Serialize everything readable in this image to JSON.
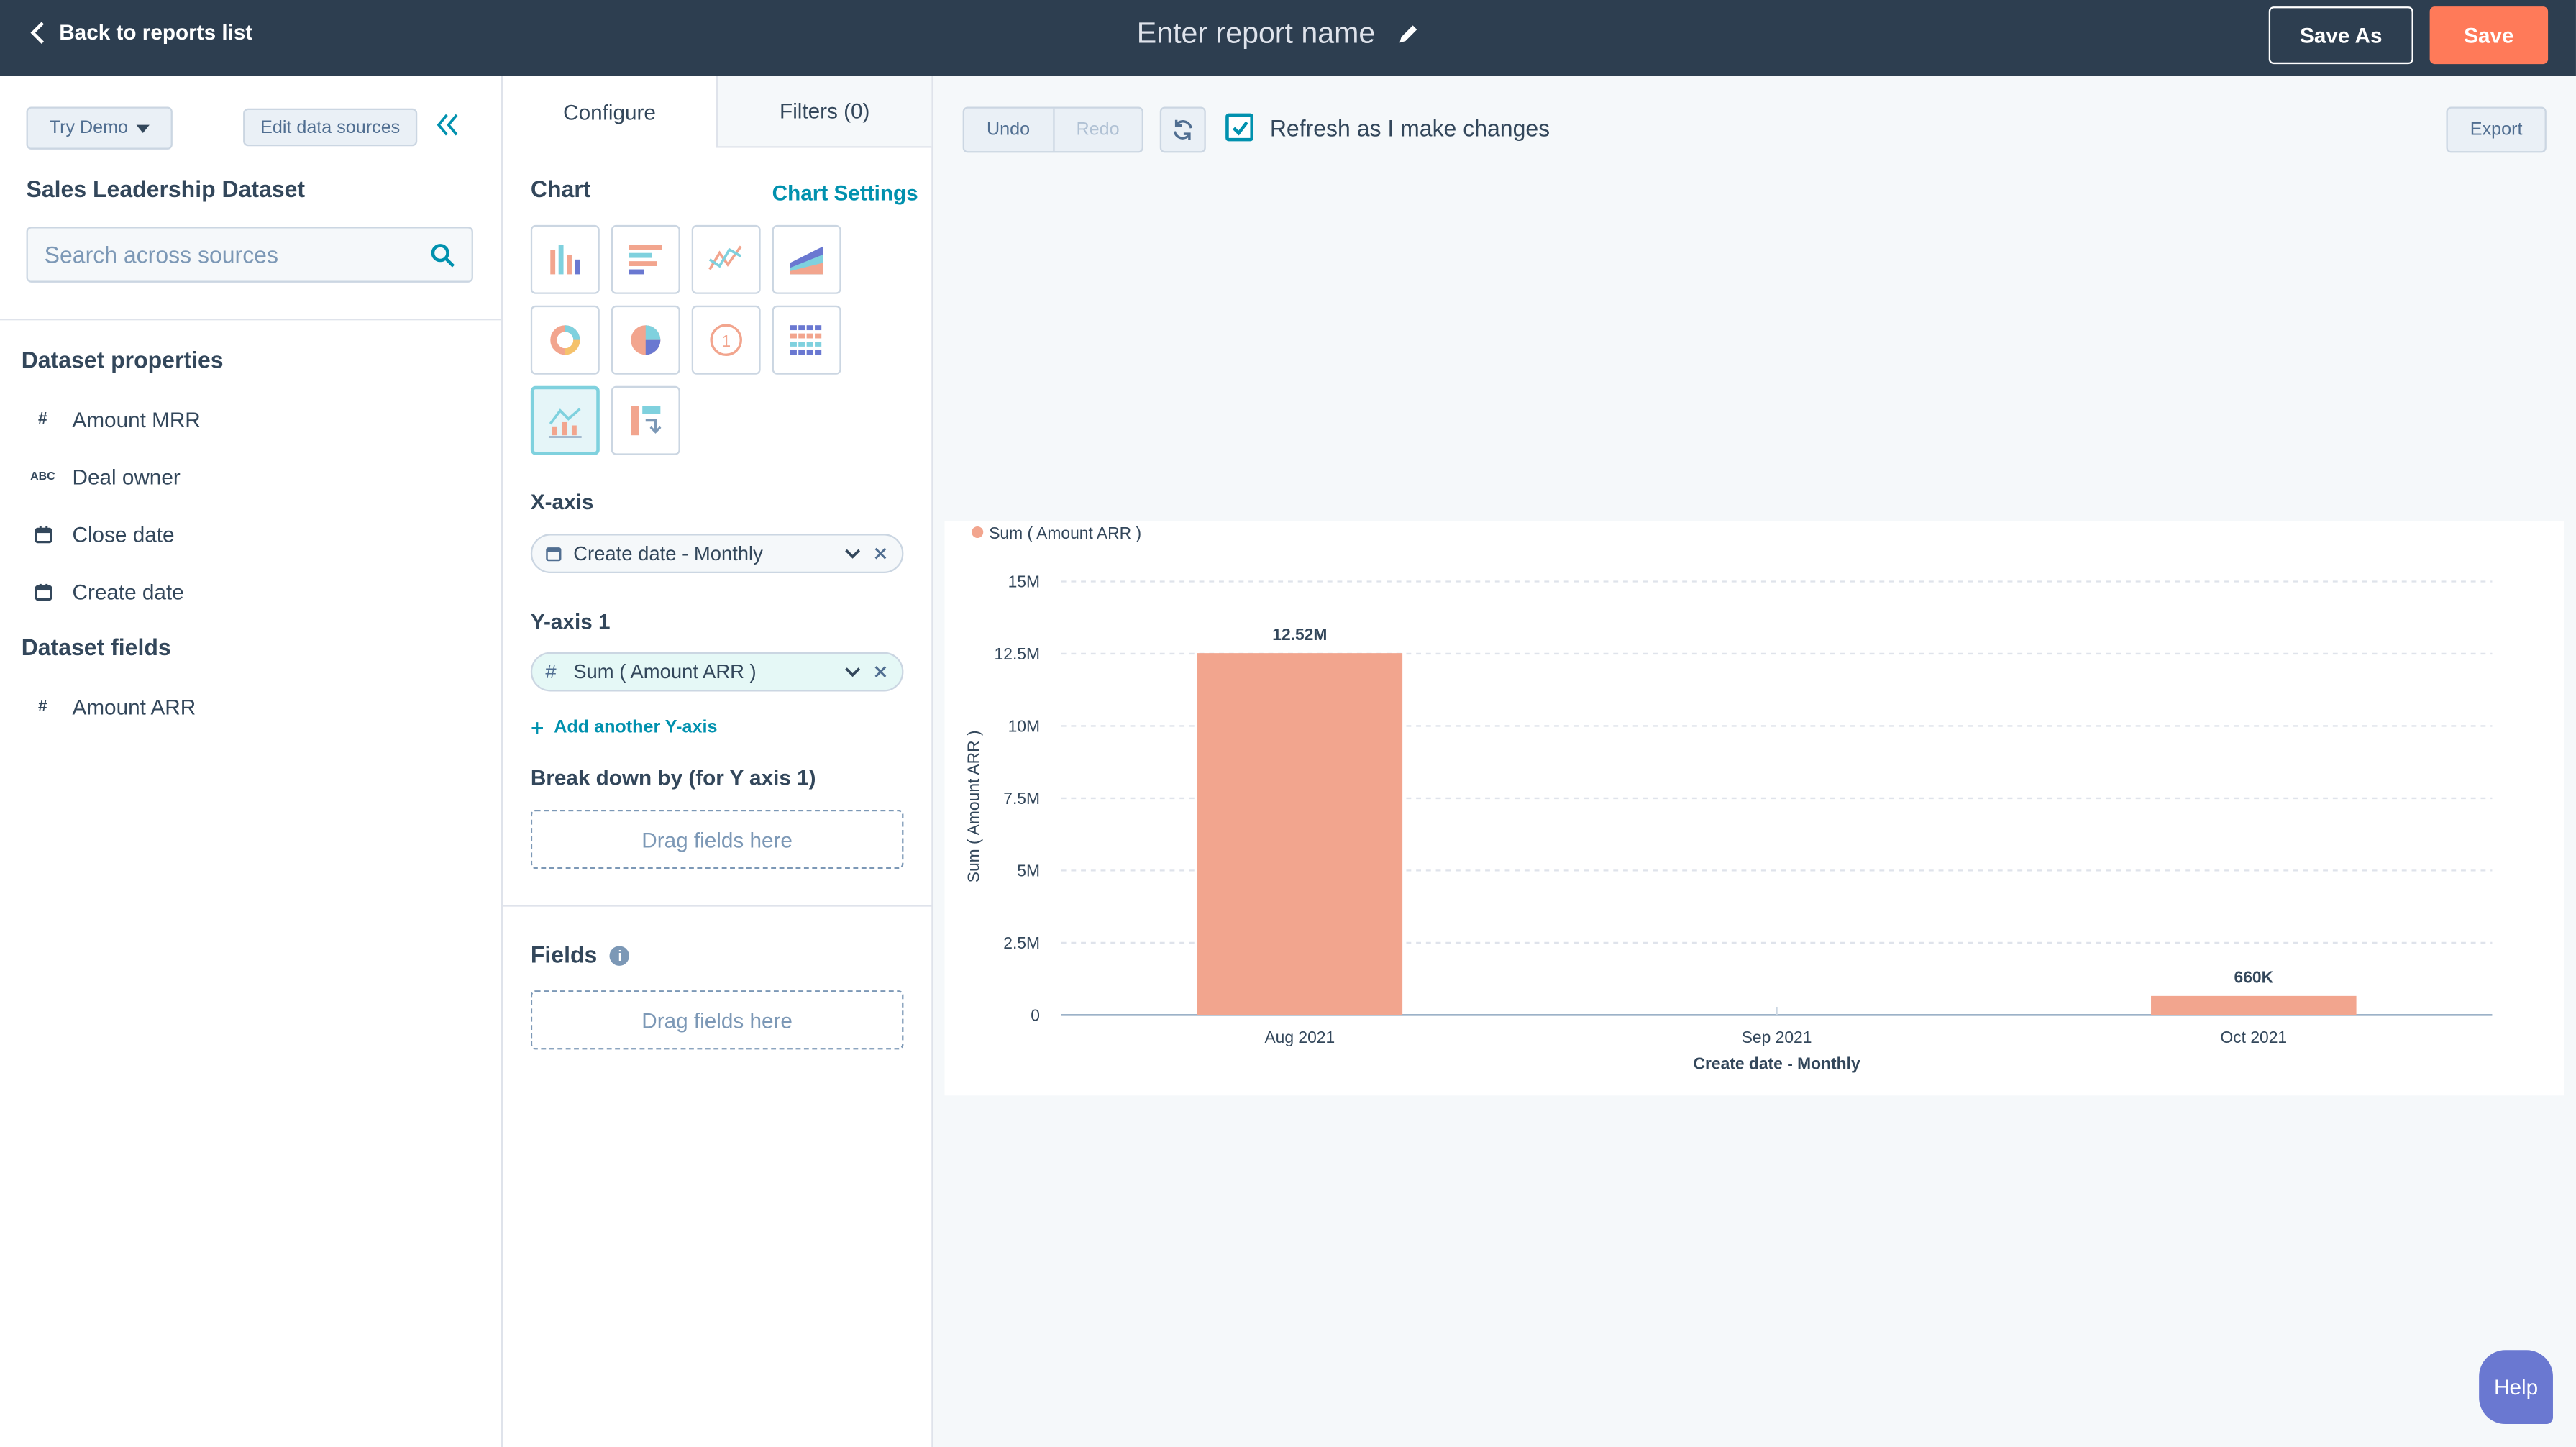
{
  "topbar": {
    "back_label": "Back to reports list",
    "report_name_placeholder": "Enter report name",
    "save_as_label": "Save As",
    "save_label": "Save",
    "save_color": "#ff7a59"
  },
  "left_panel": {
    "try_demo_label": "Try Demo",
    "edit_sources_label": "Edit data sources",
    "dataset_title": "Sales Leadership Dataset",
    "search_placeholder": "Search across sources",
    "properties_title": "Dataset properties",
    "properties": [
      {
        "label": "Amount MRR",
        "icon": "number-icon"
      },
      {
        "label": "Deal owner",
        "icon": "text-icon",
        "icon_text": "ABC"
      },
      {
        "label": "Close date",
        "icon": "calendar-icon"
      },
      {
        "label": "Create date",
        "icon": "calendar-icon"
      }
    ],
    "fields_title": "Dataset fields",
    "fields": [
      {
        "label": "Amount ARR",
        "icon": "number-icon"
      }
    ]
  },
  "middle_panel": {
    "tabs": [
      {
        "label": "Configure",
        "active": true
      },
      {
        "label": "Filters (0)",
        "active": false
      }
    ],
    "chart_label": "Chart",
    "chart_settings_label": "Chart Settings",
    "chart_types": [
      "vertical-bar",
      "horizontal-bar",
      "line",
      "area",
      "donut",
      "pie",
      "kpi",
      "table",
      "combo",
      "pivot-table"
    ],
    "selected_chart_type": "combo",
    "x_axis_label": "X-axis",
    "x_axis_value": "Create date - Monthly",
    "y_axis_label": "Y-axis 1",
    "y_axis_value": "Sum ( Amount ARR )",
    "add_y_axis_label": "Add another Y-axis",
    "breakdown_label": "Break down by (for Y axis 1)",
    "drag_fields_label": "Drag fields here",
    "fields_label": "Fields",
    "fields_drag_label": "Drag fields here"
  },
  "toolbar": {
    "undo_label": "Undo",
    "redo_label": "Redo",
    "refresh_label": "Refresh as I make changes",
    "refresh_checked": true,
    "export_label": "Export"
  },
  "help_label": "Help",
  "chart_data": {
    "type": "bar",
    "title": "",
    "legend": "Sum ( Amount ARR )",
    "legend_position": "top-left",
    "categories": [
      "Aug 2021",
      "Sep 2021",
      "Oct 2021"
    ],
    "values": [
      12520000,
      0,
      660000
    ],
    "data_labels": [
      "12.52M",
      "",
      "660K"
    ],
    "xlabel": "Create date - Monthly",
    "ylabel": "Sum ( Amount ARR )",
    "ylim": [
      0,
      15000000
    ],
    "yticks": [
      0,
      2500000,
      5000000,
      7500000,
      10000000,
      12500000,
      15000000
    ],
    "ytick_labels": [
      "0",
      "2.5M",
      "5M",
      "7.5M",
      "10M",
      "12.5M",
      "15M"
    ],
    "grid": true,
    "bar_color": "#f2a58e"
  }
}
